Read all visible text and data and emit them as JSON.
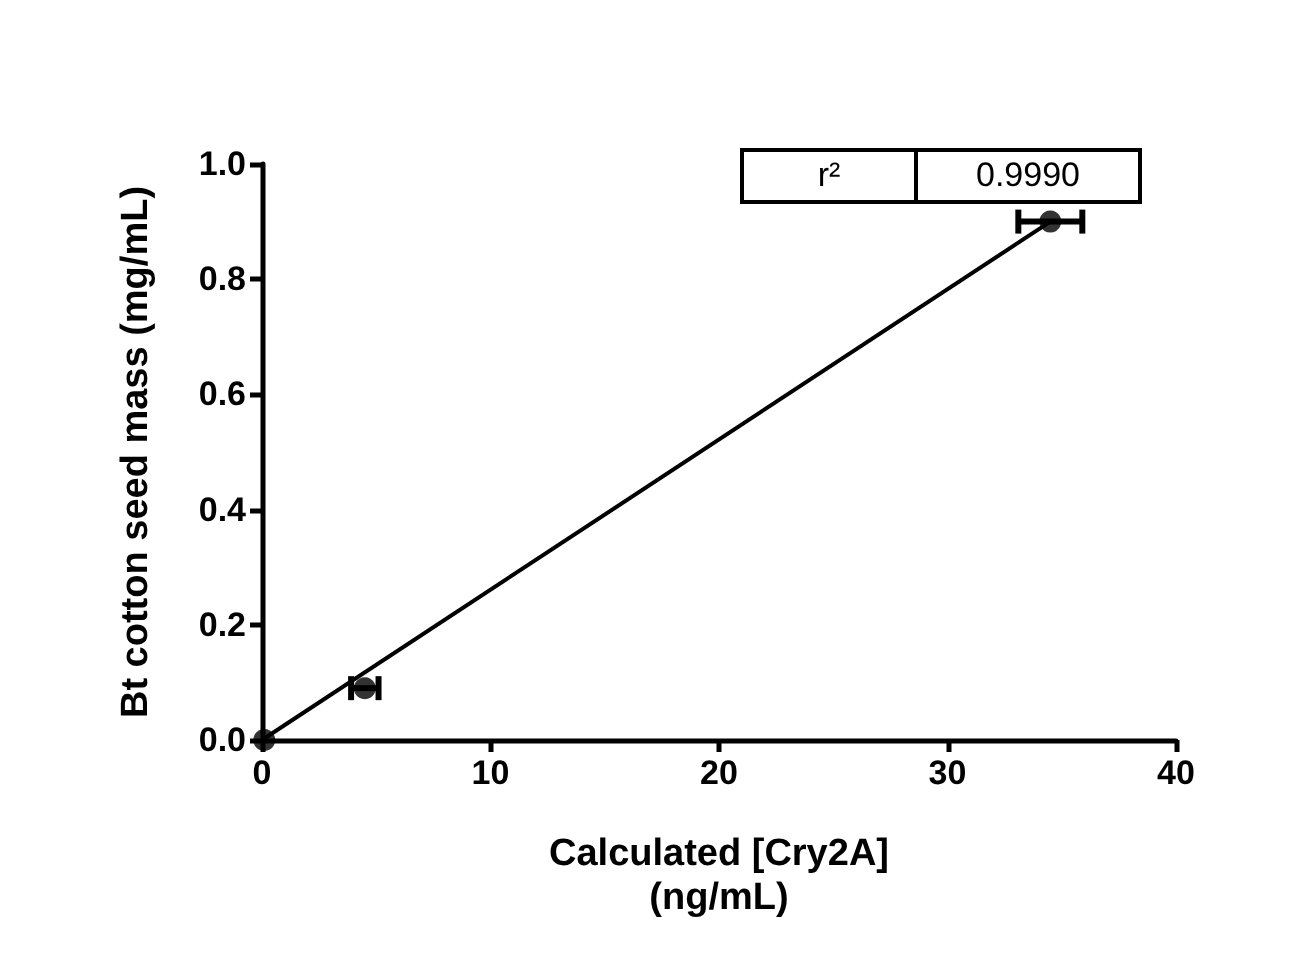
{
  "chart_data": {
    "type": "scatter",
    "xlabel": "Calculated [Cry2A]\n(ng/mL)",
    "ylabel": "Bt cotton seed mass (mg/mL)",
    "series": [
      {
        "color": "#000000",
        "marker": "circle",
        "x": [
          0.1,
          4.5,
          34.5
        ],
        "values": [
          0.0,
          0.09,
          0.9
        ],
        "xerrors": [
          null,
          0.6,
          1.4
        ]
      },
      {
        "type": "line",
        "color": "#000000",
        "marker": "none",
        "x": [
          0,
          34.5
        ],
        "values": [
          0,
          0.9
        ]
      }
    ],
    "xlim": [
      0,
      40
    ],
    "xticks": [
      0,
      10,
      20,
      30,
      40
    ],
    "ylim": [
      0,
      1
    ],
    "yticks": [
      {
        "value": 0,
        "label": "0.0"
      },
      {
        "value": 0.2,
        "label": "0.2"
      },
      {
        "value": 0.4,
        "label": "0.4"
      },
      {
        "value": 0.6,
        "label": "0.6"
      },
      {
        "value": 0.8,
        "label": "0.8"
      },
      {
        "value": 1,
        "label": "1.0"
      }
    ],
    "grid": false,
    "line_style": "solid",
    "annotations": [
      "r²",
      "0.9990"
    ]
  }
}
